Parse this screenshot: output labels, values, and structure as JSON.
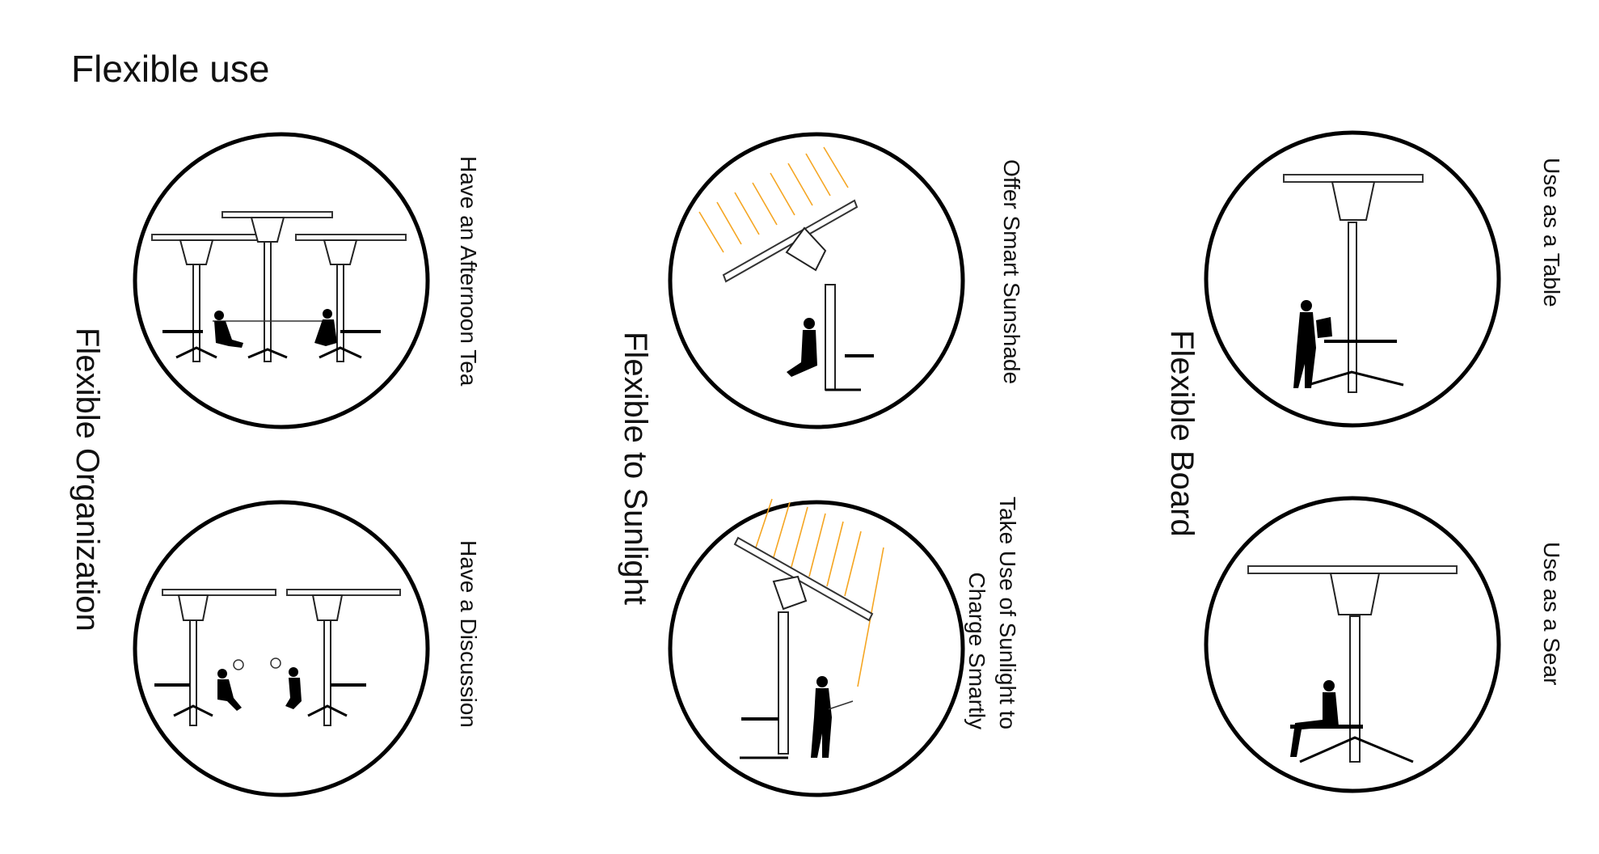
{
  "page_title": "Flexible use",
  "groups": [
    {
      "label": "Flexible Organization",
      "items": [
        {
          "label": "Have an Afternoon Tea",
          "icon": "afternoon-tea-illustration"
        },
        {
          "label": "Have a Discussion",
          "icon": "discussion-illustration"
        }
      ]
    },
    {
      "label": "Flexible to Sunlight",
      "items": [
        {
          "label": "Offer Smart Sunshade",
          "icon": "sunshade-illustration"
        },
        {
          "label": "Take  Use  of  Sunlight  to",
          "label_line2": "Charge Smartly",
          "icon": "solar-charging-illustration"
        }
      ]
    },
    {
      "label": "Flexible Board",
      "items": [
        {
          "label": "Use as a Table",
          "icon": "table-illustration"
        },
        {
          "label": "Use as a Sear",
          "icon": "seat-illustration"
        }
      ]
    }
  ],
  "colors": {
    "ink": "#000000",
    "ray": "#f5a623",
    "background": "#ffffff"
  }
}
